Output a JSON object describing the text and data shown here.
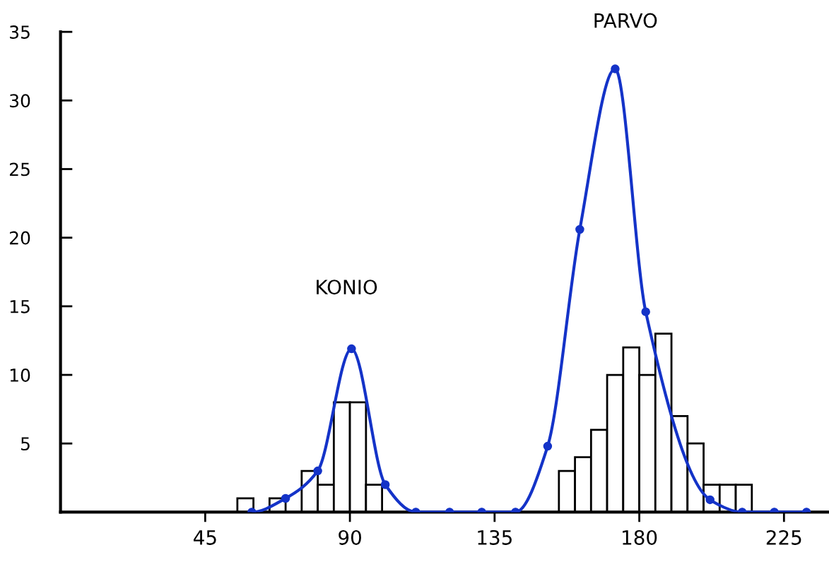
{
  "chart_data": {
    "type": "histogram",
    "xlim": [
      0,
      239
    ],
    "ylim": [
      0,
      35
    ],
    "xticks": [
      45,
      90,
      135,
      180,
      225
    ],
    "yticks": [
      5,
      10,
      15,
      20,
      25,
      30,
      35
    ],
    "grid": false,
    "legend": false,
    "annotations": [
      "KONIO",
      "PARVO"
    ],
    "series": [
      {
        "color": "#ffffff",
        "bins": [
          55,
          60,
          65,
          70,
          75,
          80,
          85,
          90,
          95,
          100,
          105,
          110,
          115,
          120,
          125,
          130,
          135,
          140,
          145,
          150,
          155,
          160,
          165,
          170,
          175,
          180,
          185,
          190,
          195,
          200,
          205,
          210,
          215
        ],
        "values": [
          1,
          0,
          1,
          0,
          3,
          2,
          8,
          8,
          2,
          0,
          0,
          0,
          0,
          0,
          0,
          0,
          0,
          0,
          0,
          0,
          3,
          4,
          6,
          10,
          12,
          10,
          13,
          7,
          5,
          2,
          2,
          2
        ]
      },
      {
        "type": "line",
        "color": "#1433c8",
        "marker": "circle",
        "x": [
          59.5,
          70,
          80,
          90.5,
          101,
          110.5,
          121,
          131,
          141.5,
          151.5,
          161.5,
          172.5,
          182,
          202,
          212,
          222,
          232
        ],
        "values": [
          0,
          1,
          3,
          11.9,
          2,
          0,
          0,
          0,
          0,
          4.8,
          20.6,
          32.3,
          14.6,
          0.9,
          0,
          0,
          0
        ]
      }
    ]
  }
}
